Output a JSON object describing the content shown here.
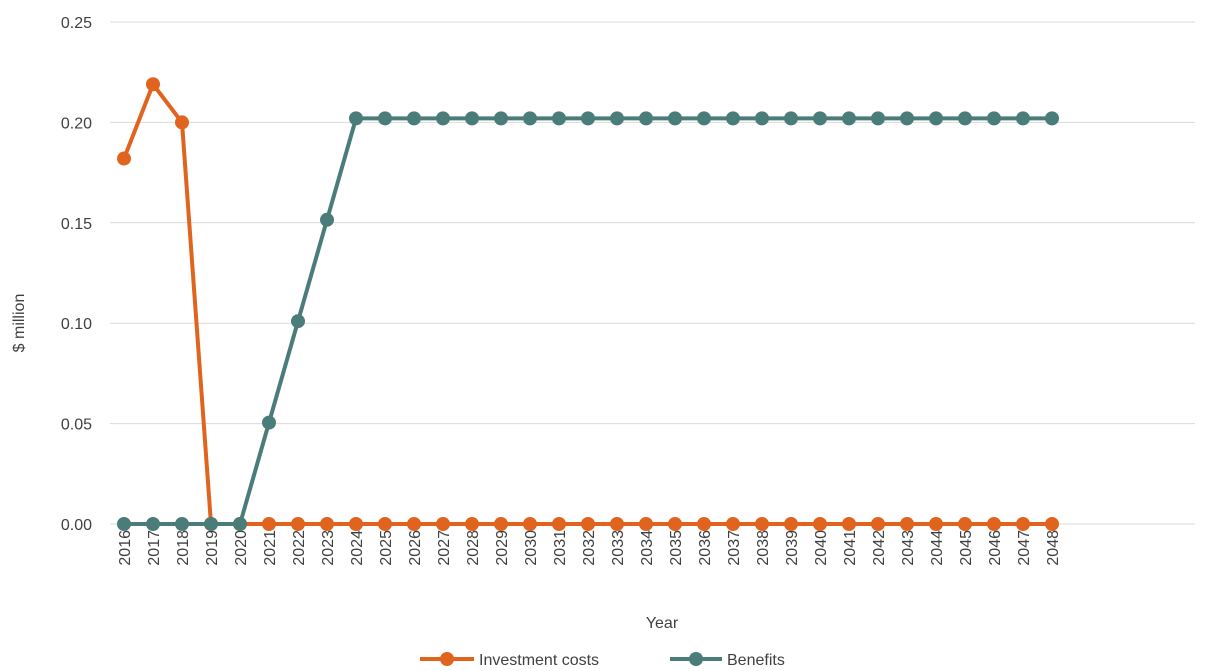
{
  "chart_data": {
    "type": "line",
    "title": "",
    "xlabel": "Year",
    "ylabel": "$ million",
    "ylim": [
      0,
      0.25
    ],
    "yticks": [
      "0.00",
      "0.05",
      "0.10",
      "0.15",
      "0.20",
      "0.25"
    ],
    "grid": true,
    "legend": "bottom",
    "x": [
      "2016",
      "2017",
      "2018",
      "2019",
      "2020",
      "2021",
      "2022",
      "2023",
      "2024",
      "2025",
      "2026",
      "2027",
      "2028",
      "2029",
      "2030",
      "2031",
      "2032",
      "2033",
      "2034",
      "2035",
      "2036",
      "2037",
      "2038",
      "2039",
      "2040",
      "2041",
      "2042",
      "2043",
      "2044",
      "2045",
      "2046",
      "2047",
      "2048"
    ],
    "series": [
      {
        "name": "Investment costs",
        "color": "#E0641E",
        "values": [
          0.182,
          0.219,
          0.2,
          0,
          0,
          0,
          0,
          0,
          0,
          0,
          0,
          0,
          0,
          0,
          0,
          0,
          0,
          0,
          0,
          0,
          0,
          0,
          0,
          0,
          0,
          0,
          0,
          0,
          0,
          0,
          0,
          0,
          0
        ]
      },
      {
        "name": "Benefits",
        "color": "#4A7C7A",
        "values": [
          0,
          0,
          0,
          0,
          0,
          0.0505,
          0.101,
          0.1515,
          0.202,
          0.202,
          0.202,
          0.202,
          0.202,
          0.202,
          0.202,
          0.202,
          0.202,
          0.202,
          0.202,
          0.202,
          0.202,
          0.202,
          0.202,
          0.202,
          0.202,
          0.202,
          0.202,
          0.202,
          0.202,
          0.202,
          0.202,
          0.202,
          0.202
        ]
      }
    ]
  }
}
